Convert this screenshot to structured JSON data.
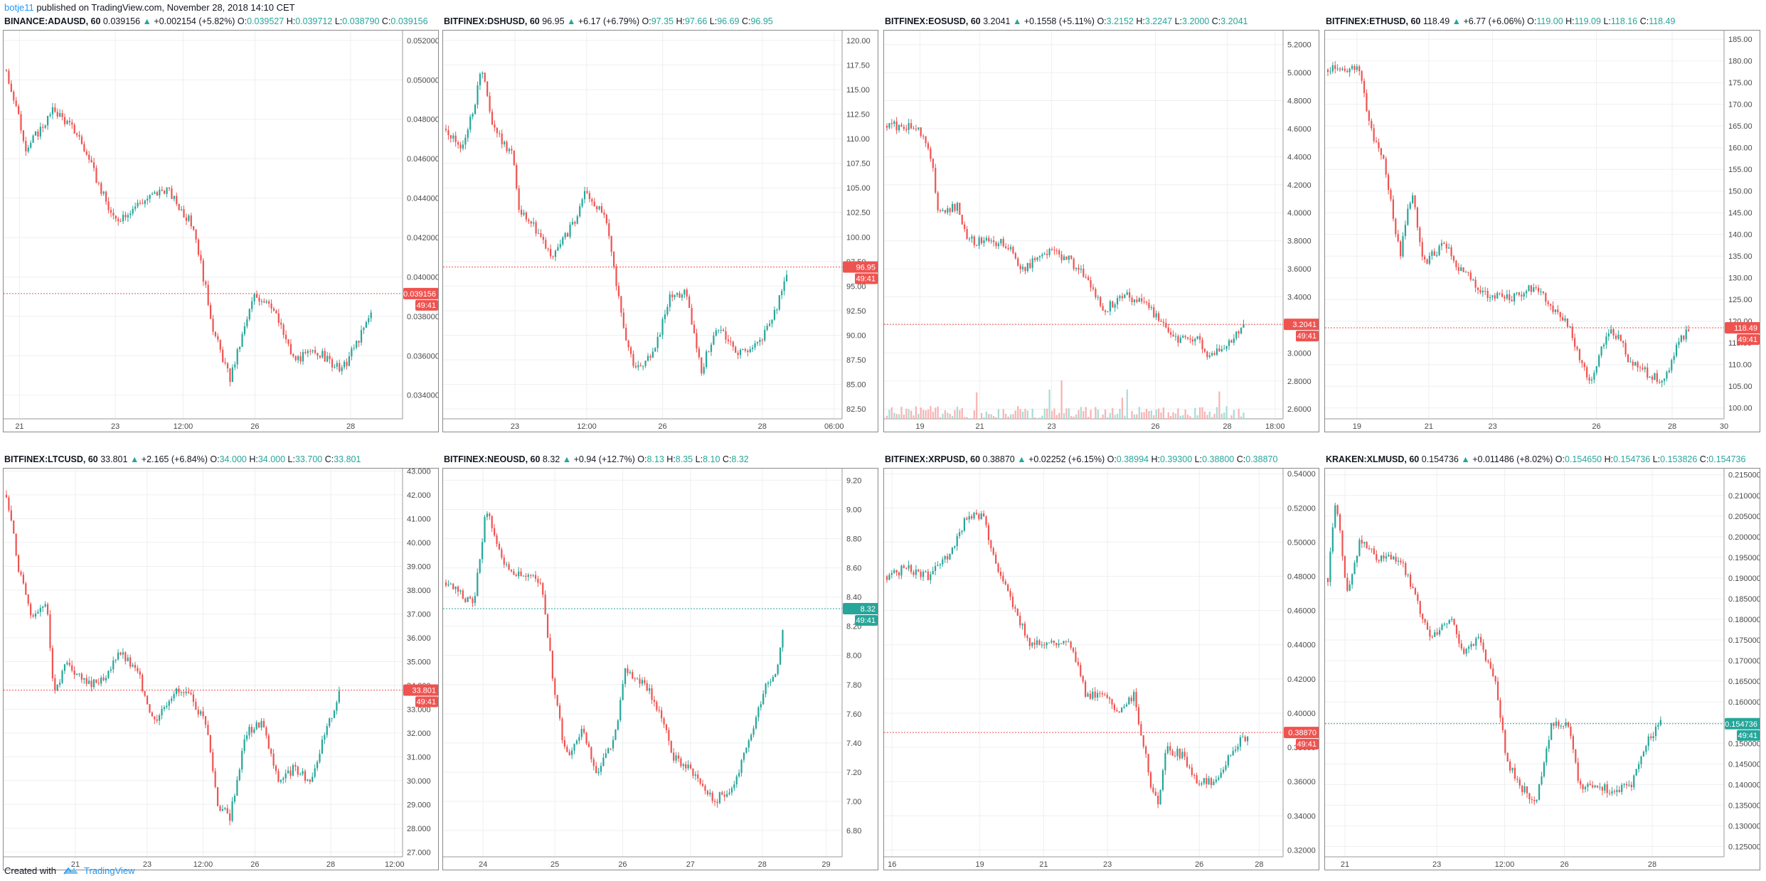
{
  "header": {
    "author": "botje11",
    "published": "published on TradingView.com, November 28, 2018 14:10 CET"
  },
  "footer": {
    "created_with": "Created with",
    "brand": "TradingView"
  },
  "colors": {
    "up": "#26a69a",
    "down": "#ef5350",
    "grid": "#eceff2",
    "axis_text": "#4a4a4a",
    "label_red": "#ef5350",
    "label_green": "#26a69a"
  },
  "chart_data": [
    {
      "type": "candlestick",
      "symbol": "BINANCE:ADAUSD, 60",
      "last": "0.039156",
      "change": "+0.002154 (+5.82%)",
      "o_label": "O:",
      "o": "0.039527",
      "h_label": "H:",
      "h": "0.039712",
      "l_label": "L:",
      "l": "0.038790",
      "c_label": "C:",
      "c": "0.039156",
      "price_label": "0.039156",
      "countdown": "49:41",
      "label_color": "red",
      "ylim": [
        0.0328,
        0.0525
      ],
      "yticks": [
        "0.052000",
        "0.050000",
        "0.048000",
        "0.046000",
        "0.044000",
        "0.042000",
        "0.040000",
        "0.038000",
        "0.036000",
        "0.034000"
      ],
      "ytick_values": [
        0.052,
        0.05,
        0.048,
        0.046,
        0.044,
        0.042,
        0.04,
        0.038,
        0.036,
        0.034
      ],
      "xticks": [
        "21",
        "23",
        "12:00",
        "26",
        "28"
      ],
      "xtick_fracs": [
        0.04,
        0.28,
        0.45,
        0.63,
        0.87
      ],
      "path": [
        [
          0,
          0.0505
        ],
        [
          0.05,
          0.0465
        ],
        [
          0.12,
          0.0485
        ],
        [
          0.18,
          0.0472
        ],
        [
          0.27,
          0.0428
        ],
        [
          0.33,
          0.0437
        ],
        [
          0.4,
          0.0445
        ],
        [
          0.47,
          0.0425
        ],
        [
          0.52,
          0.0372
        ],
        [
          0.56,
          0.0348
        ],
        [
          0.62,
          0.039
        ],
        [
          0.66,
          0.0388
        ],
        [
          0.72,
          0.0358
        ],
        [
          0.78,
          0.0362
        ],
        [
          0.84,
          0.0352
        ],
        [
          0.9,
          0.0375
        ],
        [
          0.94,
          0.0394
        ],
        [
          0.95,
          0.0392
        ]
      ],
      "x_end": 0.92,
      "volume": false
    },
    {
      "type": "candlestick",
      "symbol": "BITFINEX:DSHUSD, 60",
      "last": "96.95",
      "change": "+6.17 (+6.79%)",
      "o_label": "O:",
      "o": "97.35",
      "h_label": "H:",
      "h": "97.66",
      "l_label": "L:",
      "l": "96.69",
      "c_label": "C:",
      "c": "96.95",
      "price_label": "96.95",
      "countdown": "49:41",
      "label_color": "red",
      "ylim": [
        81.5,
        121
      ],
      "yticks": [
        "120.00",
        "117.50",
        "115.00",
        "112.50",
        "110.00",
        "107.50",
        "105.00",
        "102.50",
        "100.00",
        "97.50",
        "95.00",
        "92.50",
        "90.00",
        "87.50",
        "85.00",
        "82.50"
      ],
      "ytick_values": [
        120,
        117.5,
        115,
        112.5,
        110,
        107.5,
        105,
        102.5,
        100,
        97.5,
        95,
        92.5,
        90,
        87.5,
        85,
        82.5
      ],
      "xticks": [
        "23",
        "12:00",
        "26",
        "28",
        "06:00"
      ],
      "xtick_fracs": [
        0.18,
        0.36,
        0.55,
        0.8,
        0.98
      ],
      "path": [
        [
          0,
          111
        ],
        [
          0.04,
          109
        ],
        [
          0.07,
          113
        ],
        [
          0.09,
          117.5
        ],
        [
          0.12,
          111
        ],
        [
          0.17,
          108
        ],
        [
          0.18,
          103
        ],
        [
          0.22,
          101
        ],
        [
          0.27,
          98
        ],
        [
          0.32,
          101.5
        ],
        [
          0.35,
          104.5
        ],
        [
          0.4,
          102
        ],
        [
          0.42,
          97
        ],
        [
          0.44,
          92
        ],
        [
          0.47,
          86.5
        ],
        [
          0.52,
          88
        ],
        [
          0.56,
          94
        ],
        [
          0.6,
          94.5
        ],
        [
          0.64,
          86.5
        ],
        [
          0.68,
          91
        ],
        [
          0.74,
          88
        ],
        [
          0.79,
          89.5
        ],
        [
          0.84,
          94
        ],
        [
          0.86,
          97
        ],
        [
          0.87,
          97
        ]
      ],
      "x_end": 0.86,
      "volume": false
    },
    {
      "type": "candlestick",
      "symbol": "BITFINEX:EOSUSD, 60",
      "last": "3.2041",
      "change": "+0.1558 (+5.11%)",
      "o_label": "O:",
      "o": "3.2152",
      "h_label": "H:",
      "h": "3.2247",
      "l_label": "L:",
      "l": "3.2000",
      "c_label": "C:",
      "c": "3.2041",
      "price_label": "3.2041",
      "countdown": "49:41",
      "label_color": "red",
      "ylim": [
        2.53,
        5.3
      ],
      "yticks": [
        "5.2000",
        "5.0000",
        "4.8000",
        "4.6000",
        "4.4000",
        "4.2000",
        "4.0000",
        "3.8000",
        "3.6000",
        "3.4000",
        "3.2000",
        "3.0000",
        "2.8000",
        "2.6000"
      ],
      "ytick_values": [
        5.2,
        5.0,
        4.8,
        4.6,
        4.4,
        4.2,
        4.0,
        3.8,
        3.6,
        3.4,
        3.2,
        3.0,
        2.8,
        2.6
      ],
      "xticks": [
        "19",
        "21",
        "23",
        "26",
        "28",
        "18:00"
      ],
      "xtick_fracs": [
        0.09,
        0.24,
        0.42,
        0.68,
        0.86,
        0.98
      ],
      "path": [
        [
          0,
          4.62
        ],
        [
          0.08,
          4.62
        ],
        [
          0.11,
          4.4
        ],
        [
          0.13,
          4.0
        ],
        [
          0.18,
          4.05
        ],
        [
          0.2,
          3.8
        ],
        [
          0.25,
          3.8
        ],
        [
          0.3,
          3.78
        ],
        [
          0.34,
          3.6
        ],
        [
          0.4,
          3.72
        ],
        [
          0.45,
          3.68
        ],
        [
          0.5,
          3.55
        ],
        [
          0.54,
          3.3
        ],
        [
          0.6,
          3.42
        ],
        [
          0.66,
          3.32
        ],
        [
          0.72,
          3.1
        ],
        [
          0.78,
          3.12
        ],
        [
          0.8,
          2.98
        ],
        [
          0.84,
          3.02
        ],
        [
          0.89,
          3.2
        ],
        [
          0.9,
          3.2
        ]
      ],
      "x_end": 0.9,
      "volume": true
    },
    {
      "type": "candlestick",
      "symbol": "BITFINEX:ETHUSD, 60",
      "last": "118.49",
      "change": "+6.77 (+6.06%)",
      "o_label": "O:",
      "o": "119.00",
      "h_label": "H:",
      "h": "119.09",
      "l_label": "L:",
      "l": "118.16",
      "c_label": "C:",
      "c": "118.49",
      "price_label": "118.49",
      "countdown": "49:41",
      "label_color": "red",
      "ylim": [
        97.5,
        187
      ],
      "yticks": [
        "185.00",
        "180.00",
        "175.00",
        "170.00",
        "165.00",
        "160.00",
        "155.00",
        "150.00",
        "145.00",
        "140.00",
        "135.00",
        "130.00",
        "125.00",
        "120.00",
        "115.00",
        "110.00",
        "105.00",
        "100.00"
      ],
      "ytick_values": [
        185,
        180,
        175,
        170,
        165,
        160,
        155,
        150,
        145,
        140,
        135,
        130,
        125,
        120,
        115,
        110,
        105,
        100
      ],
      "xticks": [
        "19",
        "21",
        "23",
        "26",
        "28",
        "30"
      ],
      "xtick_fracs": [
        0.08,
        0.26,
        0.42,
        0.68,
        0.87,
        1.0
      ],
      "path": [
        [
          0,
          178
        ],
        [
          0.08,
          178
        ],
        [
          0.11,
          163
        ],
        [
          0.14,
          158
        ],
        [
          0.18,
          135
        ],
        [
          0.21,
          150
        ],
        [
          0.24,
          133
        ],
        [
          0.29,
          138
        ],
        [
          0.33,
          132
        ],
        [
          0.4,
          126
        ],
        [
          0.46,
          125
        ],
        [
          0.52,
          128
        ],
        [
          0.57,
          122
        ],
        [
          0.6,
          120
        ],
        [
          0.63,
          111
        ],
        [
          0.66,
          106
        ],
        [
          0.7,
          118
        ],
        [
          0.73,
          116
        ],
        [
          0.76,
          110
        ],
        [
          0.8,
          108
        ],
        [
          0.84,
          106
        ],
        [
          0.88,
          115
        ],
        [
          0.91,
          118.5
        ],
        [
          0.92,
          118.5
        ]
      ],
      "x_end": 0.91,
      "volume": false
    },
    {
      "type": "candlestick",
      "symbol": "BITFINEX:LTCUSD, 60",
      "last": "33.801",
      "change": "+2.165 (+6.84%)",
      "o_label": "O:",
      "o": "34.000",
      "h_label": "H:",
      "h": "34.000",
      "l_label": "L:",
      "l": "33.700",
      "c_label": "C:",
      "c": "33.801",
      "price_label": "33.801",
      "countdown": "49:41",
      "label_color": "red",
      "ylim": [
        26.8,
        43.1
      ],
      "yticks": [
        "43.000",
        "42.000",
        "41.000",
        "40.000",
        "39.000",
        "38.000",
        "37.000",
        "36.000",
        "35.000",
        "34.000",
        "33.000",
        "32.000",
        "31.000",
        "30.000",
        "29.000",
        "28.000",
        "27.000"
      ],
      "ytick_values": [
        43,
        42,
        41,
        40,
        39,
        38,
        37,
        36,
        35,
        34,
        33,
        32,
        31,
        30,
        29,
        28,
        27
      ],
      "xticks": [
        "21",
        "23",
        "12:00",
        "26",
        "28",
        "12:00"
      ],
      "xtick_fracs": [
        0.18,
        0.36,
        0.5,
        0.63,
        0.82,
        0.98
      ],
      "path": [
        [
          0,
          42
        ],
        [
          0.03,
          39
        ],
        [
          0.06,
          37
        ],
        [
          0.1,
          37.5
        ],
        [
          0.12,
          33.5
        ],
        [
          0.15,
          35
        ],
        [
          0.2,
          34
        ],
        [
          0.25,
          34.2
        ],
        [
          0.28,
          35.5
        ],
        [
          0.33,
          34.5
        ],
        [
          0.37,
          32.5
        ],
        [
          0.42,
          33.8
        ],
        [
          0.46,
          33.5
        ],
        [
          0.5,
          32.5
        ],
        [
          0.53,
          29
        ],
        [
          0.56,
          28.5
        ],
        [
          0.6,
          32
        ],
        [
          0.64,
          32.5
        ],
        [
          0.68,
          30
        ],
        [
          0.72,
          30.5
        ],
        [
          0.76,
          30
        ],
        [
          0.8,
          32
        ],
        [
          0.83,
          33.5
        ],
        [
          0.84,
          33.8
        ]
      ],
      "x_end": 0.84,
      "volume": false
    },
    {
      "type": "candlestick",
      "symbol": "BITFINEX:NEOUSD, 60",
      "last": "8.32",
      "change": "+0.94 (+12.7%)",
      "o_label": "O:",
      "o": "8.13",
      "h_label": "H:",
      "h": "8.35",
      "l_label": "L:",
      "l": "8.10",
      "c_label": "C:",
      "c": "8.32",
      "price_label": "8.32",
      "countdown": "49:41",
      "label_color": "green",
      "ylim": [
        6.62,
        9.28
      ],
      "yticks": [
        "9.20",
        "9.00",
        "8.80",
        "8.60",
        "8.40",
        "8.20",
        "8.00",
        "7.80",
        "7.60",
        "7.40",
        "7.20",
        "7.00",
        "6.80"
      ],
      "ytick_values": [
        9.2,
        9.0,
        8.8,
        8.6,
        8.4,
        8.2,
        8.0,
        7.8,
        7.6,
        7.4,
        7.2,
        7.0,
        6.8
      ],
      "xticks": [
        "24",
        "25",
        "26",
        "27",
        "28",
        "29"
      ],
      "xtick_fracs": [
        0.1,
        0.28,
        0.45,
        0.62,
        0.8,
        0.96
      ],
      "path": [
        [
          0,
          8.5
        ],
        [
          0.07,
          8.35
        ],
        [
          0.1,
          9.0
        ],
        [
          0.15,
          8.6
        ],
        [
          0.24,
          8.5
        ],
        [
          0.27,
          7.8
        ],
        [
          0.3,
          7.3
        ],
        [
          0.34,
          7.5
        ],
        [
          0.38,
          7.2
        ],
        [
          0.42,
          7.4
        ],
        [
          0.45,
          7.9
        ],
        [
          0.5,
          7.8
        ],
        [
          0.54,
          7.6
        ],
        [
          0.57,
          7.3
        ],
        [
          0.62,
          7.2
        ],
        [
          0.67,
          7.0
        ],
        [
          0.72,
          7.1
        ],
        [
          0.76,
          7.4
        ],
        [
          0.8,
          7.8
        ],
        [
          0.83,
          7.9
        ],
        [
          0.85,
          8.32
        ]
      ],
      "x_end": 0.85,
      "volume": false
    },
    {
      "type": "candlestick",
      "symbol": "BITFINEX:XRPUSD, 60",
      "last": "0.38870",
      "change": "+0.02252 (+6.15%)",
      "o_label": "O:",
      "o": "0.38994",
      "h_label": "H:",
      "h": "0.39300",
      "l_label": "L:",
      "l": "0.38800",
      "c_label": "C:",
      "c": "0.38870",
      "price_label": "0.38870",
      "countdown": "49:41",
      "label_color": "red",
      "ylim": [
        0.316,
        0.543
      ],
      "yticks": [
        "0.54000",
        "0.52000",
        "0.50000",
        "0.48000",
        "0.46000",
        "0.44000",
        "0.42000",
        "0.40000",
        "0.38000",
        "0.36000",
        "0.34000",
        "0.32000"
      ],
      "ytick_values": [
        0.54,
        0.52,
        0.5,
        0.48,
        0.46,
        0.44,
        0.42,
        0.4,
        0.38,
        0.36,
        0.34,
        0.32
      ],
      "xticks": [
        "16",
        "19",
        "21",
        "23",
        "26",
        "28"
      ],
      "xtick_fracs": [
        0.02,
        0.24,
        0.4,
        0.56,
        0.79,
        0.94
      ],
      "path": [
        [
          0,
          0.48
        ],
        [
          0.05,
          0.485
        ],
        [
          0.1,
          0.48
        ],
        [
          0.15,
          0.49
        ],
        [
          0.2,
          0.515
        ],
        [
          0.24,
          0.515
        ],
        [
          0.27,
          0.49
        ],
        [
          0.32,
          0.46
        ],
        [
          0.36,
          0.44
        ],
        [
          0.4,
          0.44
        ],
        [
          0.46,
          0.44
        ],
        [
          0.5,
          0.41
        ],
        [
          0.54,
          0.41
        ],
        [
          0.58,
          0.4
        ],
        [
          0.62,
          0.41
        ],
        [
          0.66,
          0.36
        ],
        [
          0.68,
          0.345
        ],
        [
          0.7,
          0.38
        ],
        [
          0.74,
          0.375
        ],
        [
          0.78,
          0.36
        ],
        [
          0.82,
          0.36
        ],
        [
          0.87,
          0.38
        ],
        [
          0.91,
          0.388
        ],
        [
          0.92,
          0.388
        ]
      ],
      "x_end": 0.91,
      "volume": false
    },
    {
      "type": "candlestick",
      "symbol": "KRAKEN:XLMUSD, 60",
      "last": "0.154736",
      "change": "+0.011486 (+8.02%)",
      "o_label": "O:",
      "o": "0.154650",
      "h_label": "H:",
      "h": "0.154736",
      "l_label": "L:",
      "l": "0.153826",
      "c_label": "C:",
      "c": "0.154736",
      "price_label": "0.154736",
      "countdown": "49:41",
      "label_color": "green",
      "ylim": [
        0.1225,
        0.2165
      ],
      "yticks": [
        "0.215000",
        "0.210000",
        "0.205000",
        "0.200000",
        "0.195000",
        "0.190000",
        "0.185000",
        "0.180000",
        "0.175000",
        "0.170000",
        "0.165000",
        "0.160000",
        "0.155000",
        "0.150000",
        "0.145000",
        "0.140000",
        "0.135000",
        "0.130000",
        "0.125000"
      ],
      "ytick_values": [
        0.215,
        0.21,
        0.205,
        0.2,
        0.195,
        0.19,
        0.185,
        0.18,
        0.175,
        0.17,
        0.165,
        0.16,
        0.155,
        0.15,
        0.145,
        0.14,
        0.135,
        0.13,
        0.125
      ],
      "xticks": [
        "21",
        "23",
        "12:00",
        "26",
        "28"
      ],
      "xtick_fracs": [
        0.05,
        0.28,
        0.45,
        0.6,
        0.82
      ],
      "path": [
        [
          0,
          0.19
        ],
        [
          0.02,
          0.21
        ],
        [
          0.05,
          0.185
        ],
        [
          0.08,
          0.2
        ],
        [
          0.12,
          0.195
        ],
        [
          0.18,
          0.195
        ],
        [
          0.22,
          0.185
        ],
        [
          0.26,
          0.175
        ],
        [
          0.31,
          0.18
        ],
        [
          0.34,
          0.172
        ],
        [
          0.38,
          0.175
        ],
        [
          0.42,
          0.165
        ],
        [
          0.45,
          0.145
        ],
        [
          0.48,
          0.14
        ],
        [
          0.52,
          0.135
        ],
        [
          0.56,
          0.155
        ],
        [
          0.6,
          0.155
        ],
        [
          0.63,
          0.14
        ],
        [
          0.67,
          0.14
        ],
        [
          0.72,
          0.138
        ],
        [
          0.76,
          0.14
        ],
        [
          0.8,
          0.15
        ],
        [
          0.83,
          0.155
        ],
        [
          0.84,
          0.155
        ]
      ],
      "x_end": 0.84,
      "volume": false
    }
  ]
}
